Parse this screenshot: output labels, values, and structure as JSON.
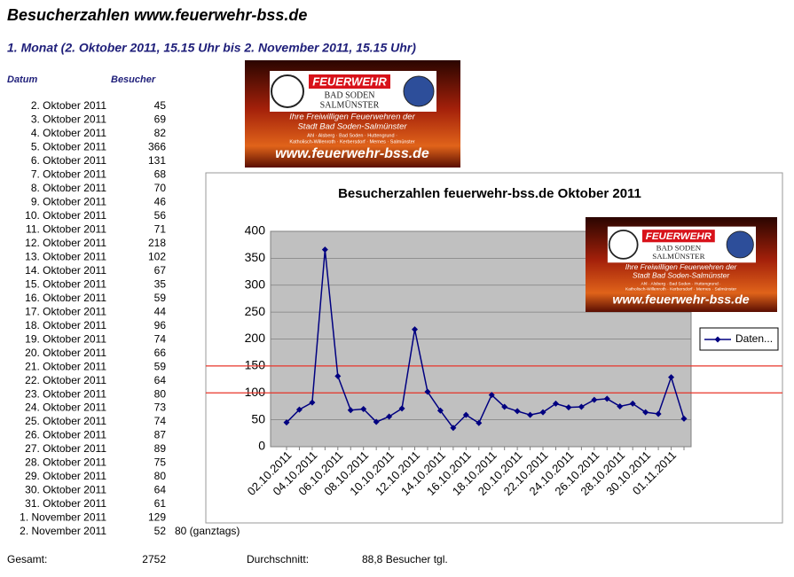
{
  "header": {
    "title": "Besucherzahlen www.feuerwehr-bss.de",
    "subtitle": "1. Monat (2. Oktober 2011, 15.15 Uhr bis 2. November 2011, 15.15 Uhr)"
  },
  "table": {
    "columns": [
      "Datum",
      "Besucher"
    ],
    "dates": [
      "2. Oktober 2011",
      "3. Oktober 2011",
      "4. Oktober 2011",
      "5. Oktober 2011",
      "6. Oktober 2011",
      "7. Oktober 2011",
      "8. Oktober 2011",
      "9. Oktober 2011",
      "10. Oktober 2011",
      "11. Oktober 2011",
      "12. Oktober 2011",
      "13. Oktober 2011",
      "14. Oktober 2011",
      "15. Oktober 2011",
      "16. Oktober 2011",
      "17. Oktober 2011",
      "18. Oktober 2011",
      "19. Oktober 2011",
      "20. Oktober 2011",
      "21. Oktober 2011",
      "22. Oktober 2011",
      "23. Oktober 2011",
      "24. Oktober 2011",
      "25. Oktober 2011",
      "26. Oktober 2011",
      "27. Oktober 2011",
      "28. Oktober 2011",
      "29. Oktober 2011",
      "30. Oktober 2011",
      "31. Oktober 2011",
      "1. November 2011",
      "2. November 2011"
    ],
    "note": "80 (ganztags)"
  },
  "footer": {
    "total_label": "Gesamt:",
    "total": 2752,
    "average_label": "Durchschnitt:",
    "average": "88,8 Besucher tgl."
  },
  "logo": {
    "brand": "FEUERWEHR",
    "town1": "BAD SODEN",
    "town2": "SALMÜNSTER",
    "tagline1": "Ihre Freiwilligen Feuerwehren der",
    "tagline2": "Stadt Bad Soden-Salmünster",
    "places1": "Ahl · Alsberg · Bad Soden · Huttengrund ·",
    "places2": "Katholisch-Willenroth · Kerbersdorf · Mernes · Salmünster",
    "url": "www.feuerwehr-bss.de"
  },
  "chart_data": {
    "type": "line",
    "title": "Besucherzahlen feuerwehr-bss.de Oktober 2011",
    "categories": [
      "02.10.2011",
      null,
      "04.10.2011",
      null,
      "06.10.2011",
      null,
      "08.10.2011",
      null,
      "10.10.2011",
      null,
      "12.10.2011",
      null,
      "14.10.2011",
      null,
      "16.10.2011",
      null,
      "18.10.2011",
      null,
      "20.10.2011",
      null,
      "22.10.2011",
      null,
      "24.10.2011",
      null,
      "26.10.2011",
      null,
      "28.10.2011",
      null,
      "30.10.2011",
      null,
      "01.11.2011",
      null
    ],
    "series": [
      {
        "name": "Daten...",
        "color": "#000080",
        "values": [
          45,
          69,
          82,
          366,
          131,
          68,
          70,
          46,
          56,
          71,
          218,
          102,
          67,
          35,
          59,
          44,
          96,
          74,
          66,
          59,
          64,
          80,
          73,
          74,
          87,
          89,
          75,
          80,
          64,
          61,
          129,
          52
        ]
      }
    ],
    "ylim": [
      0,
      400
    ],
    "yticks": [
      0,
      50,
      100,
      150,
      200,
      250,
      300,
      350,
      400
    ],
    "grid": true,
    "reference_lines": [
      {
        "value": 100,
        "color": "#e8352a"
      },
      {
        "value": 150,
        "color": "#e8352a"
      }
    ],
    "legend": "right"
  }
}
